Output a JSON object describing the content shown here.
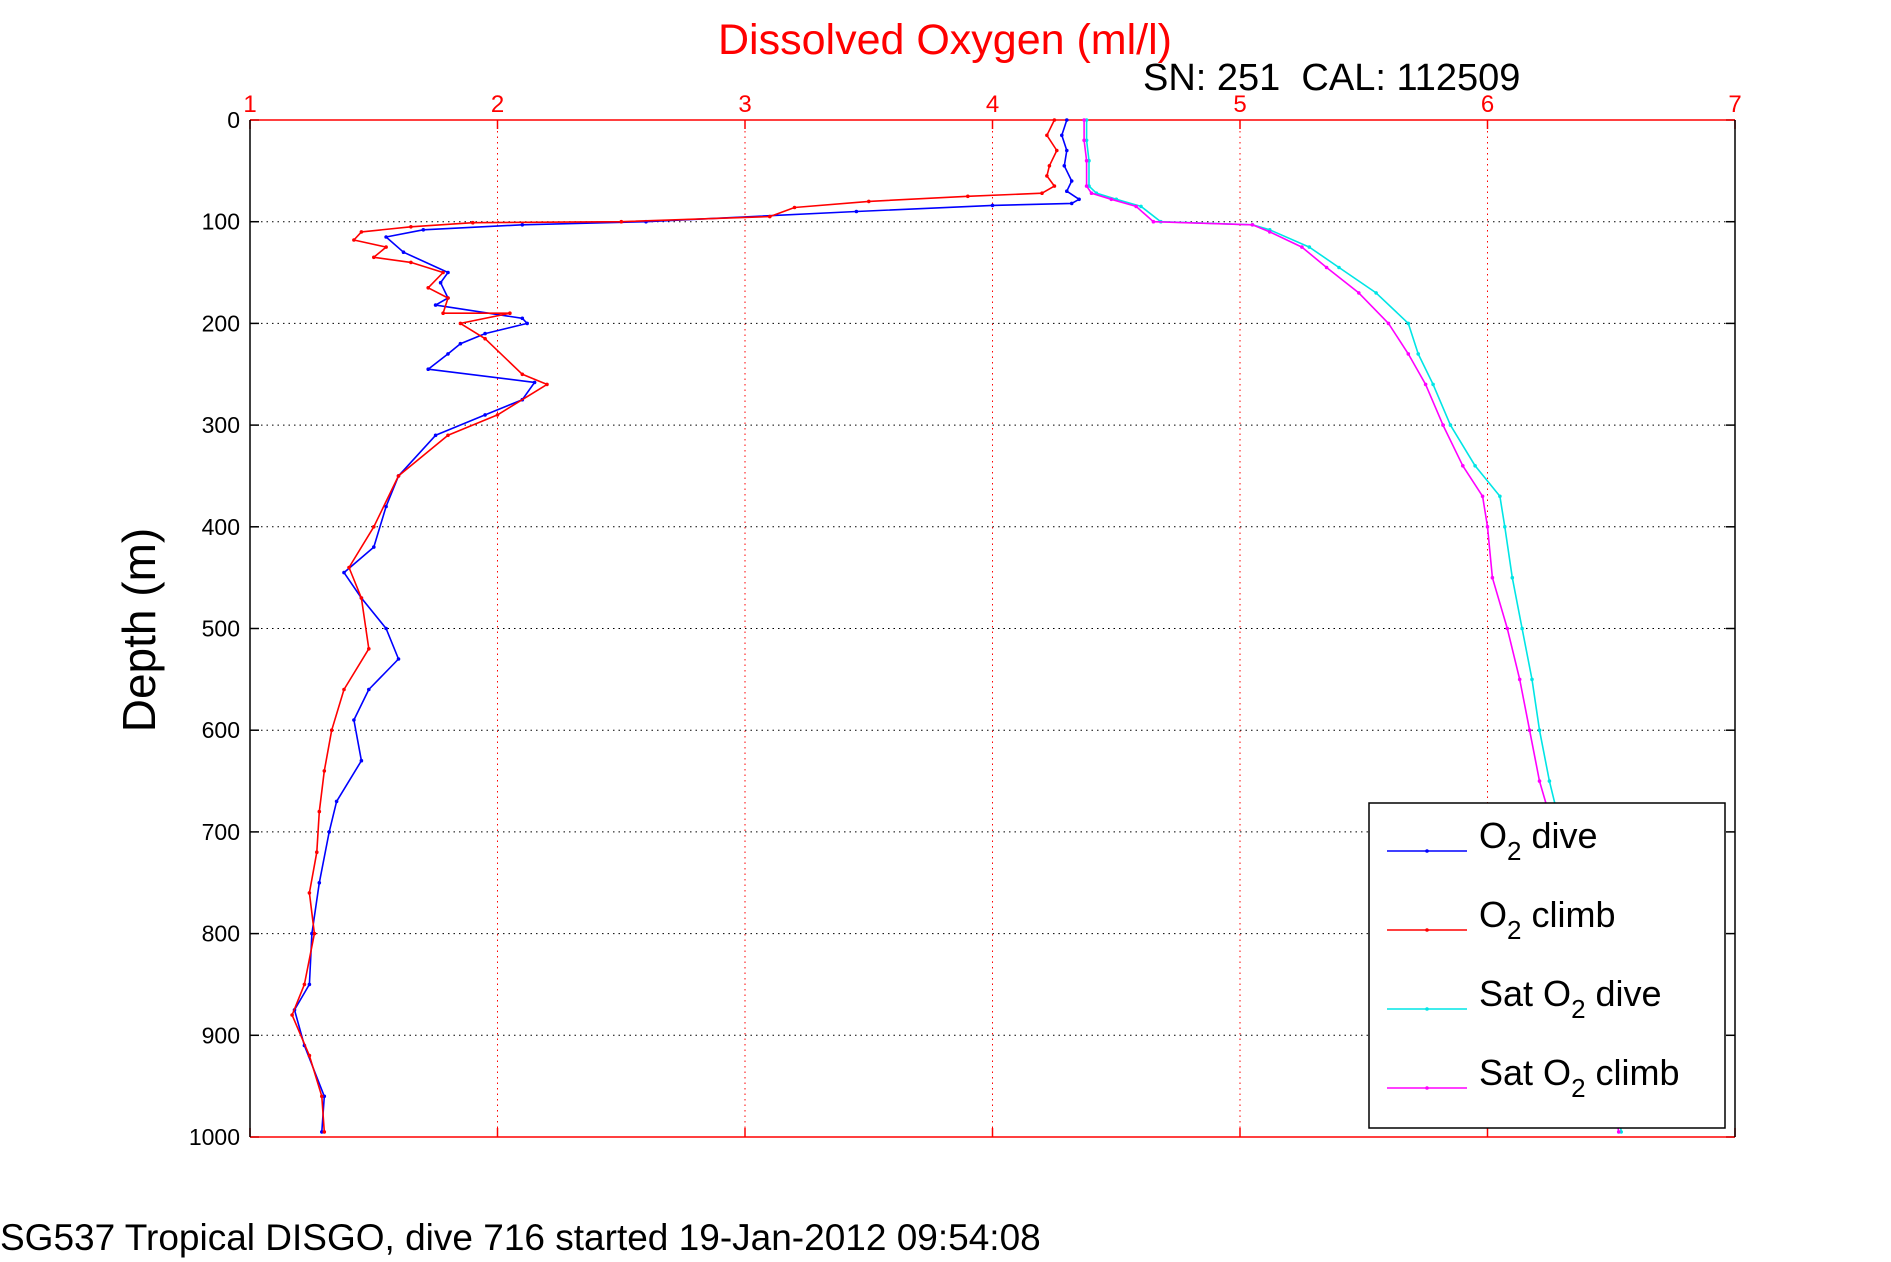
{
  "chart_data": {
    "type": "line",
    "title": "Dissolved Oxygen (ml/l)",
    "subtitle": "SN: 251  CAL: 112509",
    "footer": "SG537 Tropical DISGO, dive 716 started 19-Jan-2012 09:54:08",
    "ylabel": "Depth (m)",
    "xlim": [
      1,
      7
    ],
    "ylim": [
      0,
      1000
    ],
    "y_reversed": true,
    "x_axis_position": "top",
    "x_ticks": [
      "1",
      "2",
      "3",
      "4",
      "5",
      "6",
      "7"
    ],
    "y_ticks": [
      "0",
      "100",
      "200",
      "300",
      "400",
      "500",
      "600",
      "700",
      "800",
      "900",
      "1000"
    ],
    "grid": true,
    "legend_position": "bottom-right",
    "colors": {
      "title": "#ff0000",
      "x_axis": "#ff0000",
      "y_axis": "#000000",
      "grid_x": "#ff0000",
      "grid_y": "#000000"
    },
    "legend": [
      {
        "base": "O",
        "sub": "2",
        "rest": " dive",
        "prefix": "",
        "color": "#0000ff"
      },
      {
        "base": "O",
        "sub": "2",
        "rest": " climb",
        "prefix": "",
        "color": "#ff0000"
      },
      {
        "base": "O",
        "sub": "2",
        "rest": " dive",
        "prefix": "Sat ",
        "color": "#00e5e5"
      },
      {
        "base": "O",
        "sub": "2",
        "rest": " climb",
        "prefix": "Sat ",
        "color": "#ff00ff"
      }
    ],
    "series": [
      {
        "name": "O2 dive",
        "color": "#0000ff",
        "points": [
          [
            4.3,
            0
          ],
          [
            4.28,
            15
          ],
          [
            4.3,
            30
          ],
          [
            4.29,
            45
          ],
          [
            4.32,
            60
          ],
          [
            4.3,
            70
          ],
          [
            4.35,
            78
          ],
          [
            4.32,
            82
          ],
          [
            4.0,
            84
          ],
          [
            3.45,
            90
          ],
          [
            2.6,
            100
          ],
          [
            2.1,
            103
          ],
          [
            1.7,
            108
          ],
          [
            1.55,
            115
          ],
          [
            1.62,
            130
          ],
          [
            1.8,
            150
          ],
          [
            1.77,
            160
          ],
          [
            1.8,
            175
          ],
          [
            1.75,
            182
          ],
          [
            2.1,
            195
          ],
          [
            2.12,
            200
          ],
          [
            1.95,
            210
          ],
          [
            1.85,
            220
          ],
          [
            1.8,
            230
          ],
          [
            1.72,
            245
          ],
          [
            2.15,
            258
          ],
          [
            2.1,
            275
          ],
          [
            1.95,
            290
          ],
          [
            1.75,
            310
          ],
          [
            1.6,
            350
          ],
          [
            1.55,
            380
          ],
          [
            1.5,
            420
          ],
          [
            1.38,
            445
          ],
          [
            1.45,
            470
          ],
          [
            1.55,
            500
          ],
          [
            1.6,
            530
          ],
          [
            1.48,
            560
          ],
          [
            1.42,
            590
          ],
          [
            1.45,
            630
          ],
          [
            1.35,
            670
          ],
          [
            1.32,
            700
          ],
          [
            1.28,
            750
          ],
          [
            1.25,
            800
          ],
          [
            1.24,
            850
          ],
          [
            1.18,
            875
          ],
          [
            1.22,
            910
          ],
          [
            1.3,
            960
          ],
          [
            1.29,
            995
          ]
        ]
      },
      {
        "name": "O2 climb",
        "color": "#ff0000",
        "points": [
          [
            4.25,
            0
          ],
          [
            4.22,
            15
          ],
          [
            4.26,
            30
          ],
          [
            4.23,
            45
          ],
          [
            4.22,
            55
          ],
          [
            4.25,
            65
          ],
          [
            4.2,
            72
          ],
          [
            3.9,
            75
          ],
          [
            3.5,
            80
          ],
          [
            3.2,
            86
          ],
          [
            3.1,
            95
          ],
          [
            2.5,
            100
          ],
          [
            1.9,
            101
          ],
          [
            1.65,
            105
          ],
          [
            1.45,
            110
          ],
          [
            1.42,
            118
          ],
          [
            1.55,
            125
          ],
          [
            1.5,
            135
          ],
          [
            1.65,
            140
          ],
          [
            1.78,
            150
          ],
          [
            1.72,
            165
          ],
          [
            1.8,
            175
          ],
          [
            1.78,
            190
          ],
          [
            2.05,
            190
          ],
          [
            1.85,
            200
          ],
          [
            1.95,
            215
          ],
          [
            2.1,
            250
          ],
          [
            2.2,
            260
          ],
          [
            2.0,
            290
          ],
          [
            1.8,
            310
          ],
          [
            1.6,
            350
          ],
          [
            1.5,
            400
          ],
          [
            1.4,
            440
          ],
          [
            1.45,
            470
          ],
          [
            1.48,
            520
          ],
          [
            1.38,
            560
          ],
          [
            1.33,
            600
          ],
          [
            1.3,
            640
          ],
          [
            1.28,
            680
          ],
          [
            1.27,
            720
          ],
          [
            1.24,
            760
          ],
          [
            1.26,
            800
          ],
          [
            1.22,
            850
          ],
          [
            1.17,
            880
          ],
          [
            1.24,
            920
          ],
          [
            1.29,
            960
          ],
          [
            1.3,
            995
          ]
        ]
      },
      {
        "name": "Sat O2 dive",
        "color": "#00e5e5",
        "points": [
          [
            4.38,
            0
          ],
          [
            4.38,
            20
          ],
          [
            4.39,
            40
          ],
          [
            4.39,
            65
          ],
          [
            4.42,
            72
          ],
          [
            4.5,
            78
          ],
          [
            4.6,
            85
          ],
          [
            4.68,
            100
          ],
          [
            5.05,
            103
          ],
          [
            5.12,
            108
          ],
          [
            5.28,
            125
          ],
          [
            5.4,
            145
          ],
          [
            5.55,
            170
          ],
          [
            5.68,
            200
          ],
          [
            5.72,
            230
          ],
          [
            5.78,
            260
          ],
          [
            5.85,
            300
          ],
          [
            5.95,
            340
          ],
          [
            6.05,
            370
          ],
          [
            6.07,
            400
          ],
          [
            6.1,
            450
          ],
          [
            6.14,
            500
          ],
          [
            6.18,
            550
          ],
          [
            6.21,
            600
          ],
          [
            6.25,
            650
          ],
          [
            6.3,
            700
          ],
          [
            6.35,
            760
          ],
          [
            6.42,
            830
          ],
          [
            6.48,
            900
          ],
          [
            6.52,
            950
          ],
          [
            6.54,
            995
          ]
        ]
      },
      {
        "name": "Sat O2 climb",
        "color": "#ff00ff",
        "points": [
          [
            4.37,
            0
          ],
          [
            4.37,
            20
          ],
          [
            4.38,
            40
          ],
          [
            4.38,
            65
          ],
          [
            4.4,
            72
          ],
          [
            4.48,
            78
          ],
          [
            4.58,
            85
          ],
          [
            4.65,
            100
          ],
          [
            5.05,
            103
          ],
          [
            5.12,
            110
          ],
          [
            5.25,
            125
          ],
          [
            5.35,
            145
          ],
          [
            5.48,
            170
          ],
          [
            5.6,
            200
          ],
          [
            5.68,
            230
          ],
          [
            5.75,
            260
          ],
          [
            5.82,
            300
          ],
          [
            5.9,
            340
          ],
          [
            5.98,
            370
          ],
          [
            6.0,
            400
          ],
          [
            6.02,
            450
          ],
          [
            6.08,
            500
          ],
          [
            6.13,
            550
          ],
          [
            6.17,
            600
          ],
          [
            6.21,
            650
          ],
          [
            6.27,
            700
          ],
          [
            6.33,
            760
          ],
          [
            6.4,
            830
          ],
          [
            6.46,
            900
          ],
          [
            6.5,
            950
          ],
          [
            6.53,
            995
          ]
        ]
      }
    ]
  }
}
